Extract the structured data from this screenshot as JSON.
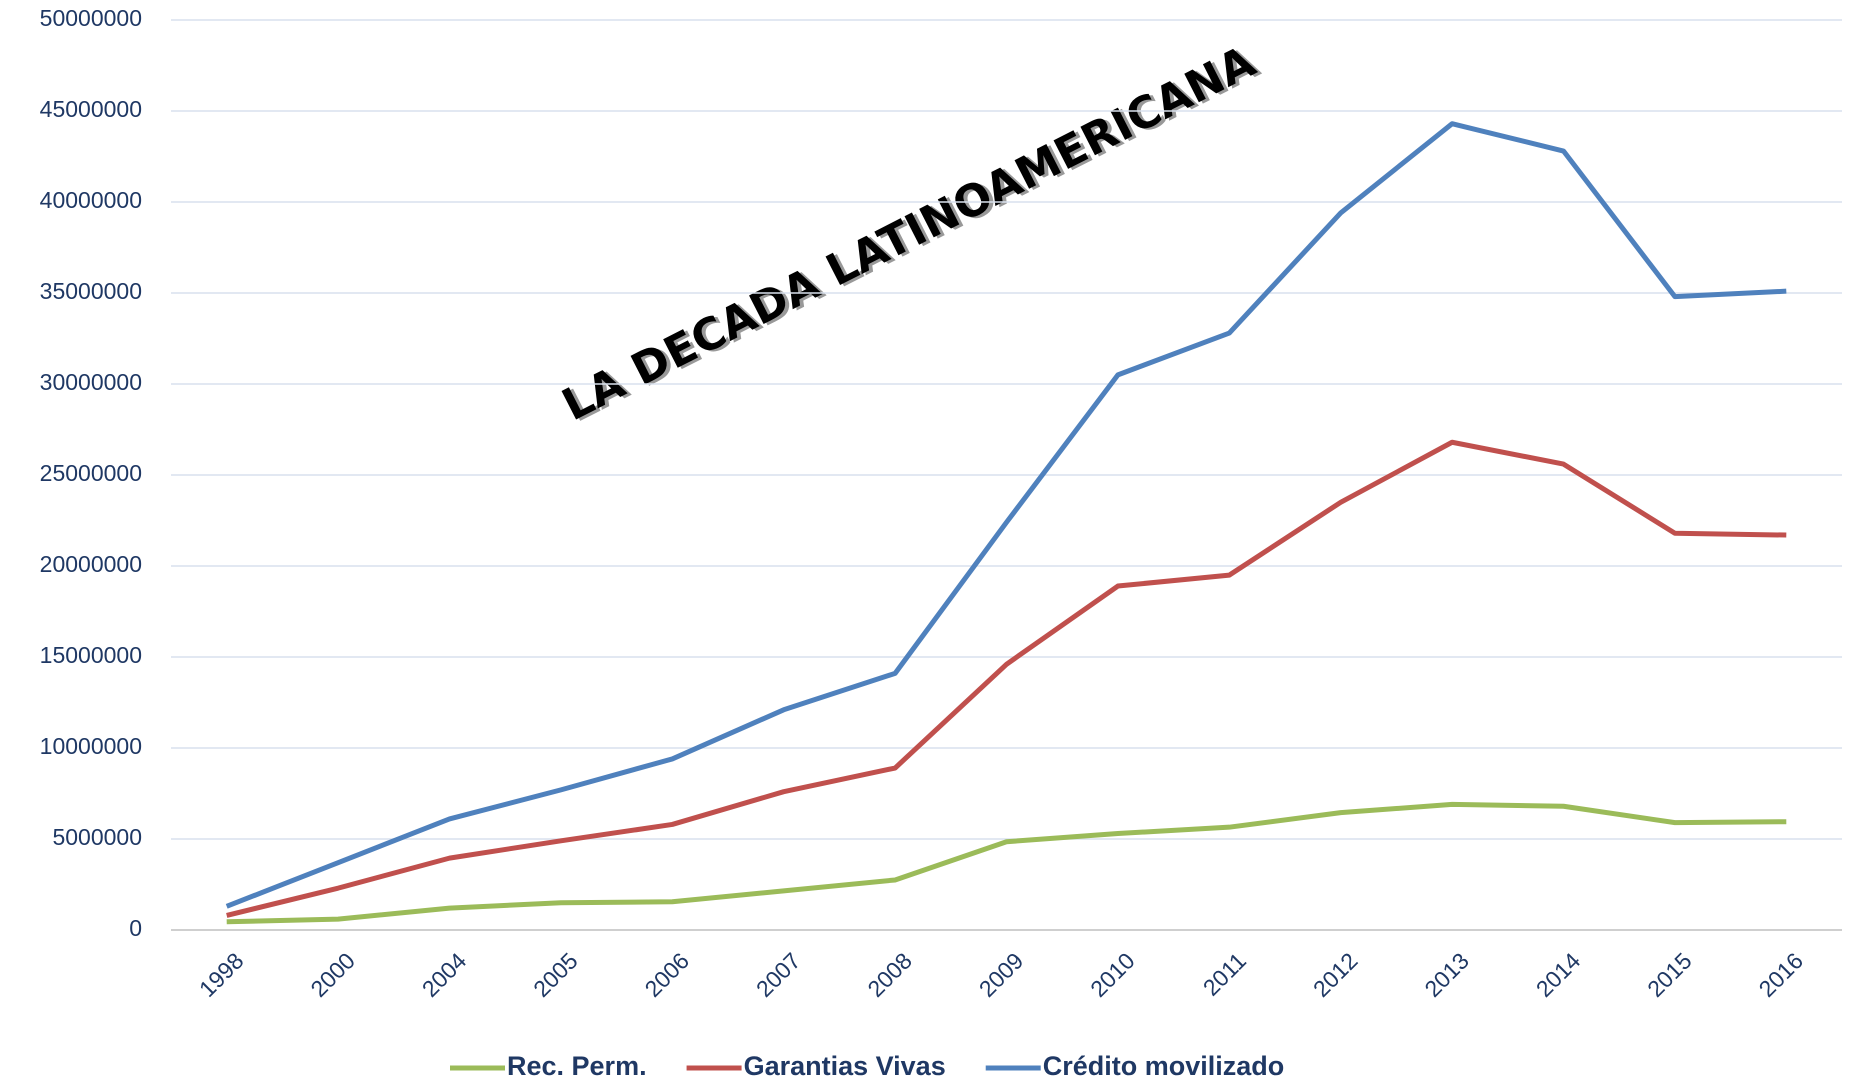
{
  "chart_data": {
    "type": "line",
    "annotation": "LA DECADA LATINOAMERICANA",
    "categories": [
      "1998",
      "2000",
      "2004",
      "2005",
      "2006",
      "2007",
      "2008",
      "2009",
      "2010",
      "2011",
      "2012",
      "2013",
      "2014",
      "2015",
      "2016"
    ],
    "series": [
      {
        "name": "Rec. Perm.",
        "color": "#9bbb59",
        "values": [
          450000,
          600000,
          1200000,
          1500000,
          1550000,
          2150000,
          2750000,
          4850000,
          5300000,
          5650000,
          6450000,
          6900000,
          6800000,
          5900000,
          5950000
        ]
      },
      {
        "name": "Garantias Vivas",
        "color": "#c0504d",
        "values": [
          800000,
          2300000,
          3950000,
          4900000,
          5800000,
          7600000,
          8900000,
          14600000,
          18900000,
          19500000,
          23500000,
          26800000,
          25600000,
          21800000,
          21700000
        ]
      },
      {
        "name": "Crédito movilizado",
        "color": "#4f81bd",
        "values": [
          1300000,
          3700000,
          6100000,
          7700000,
          9400000,
          12100000,
          14100000,
          22400000,
          30500000,
          32800000,
          39400000,
          44300000,
          42800000,
          34800000,
          35100000
        ]
      }
    ],
    "ylim": [
      0,
      50000000
    ],
    "yticks": [
      0,
      5000000,
      10000000,
      15000000,
      20000000,
      25000000,
      30000000,
      35000000,
      40000000,
      45000000,
      50000000
    ],
    "grid": true,
    "legend": "bottom"
  }
}
